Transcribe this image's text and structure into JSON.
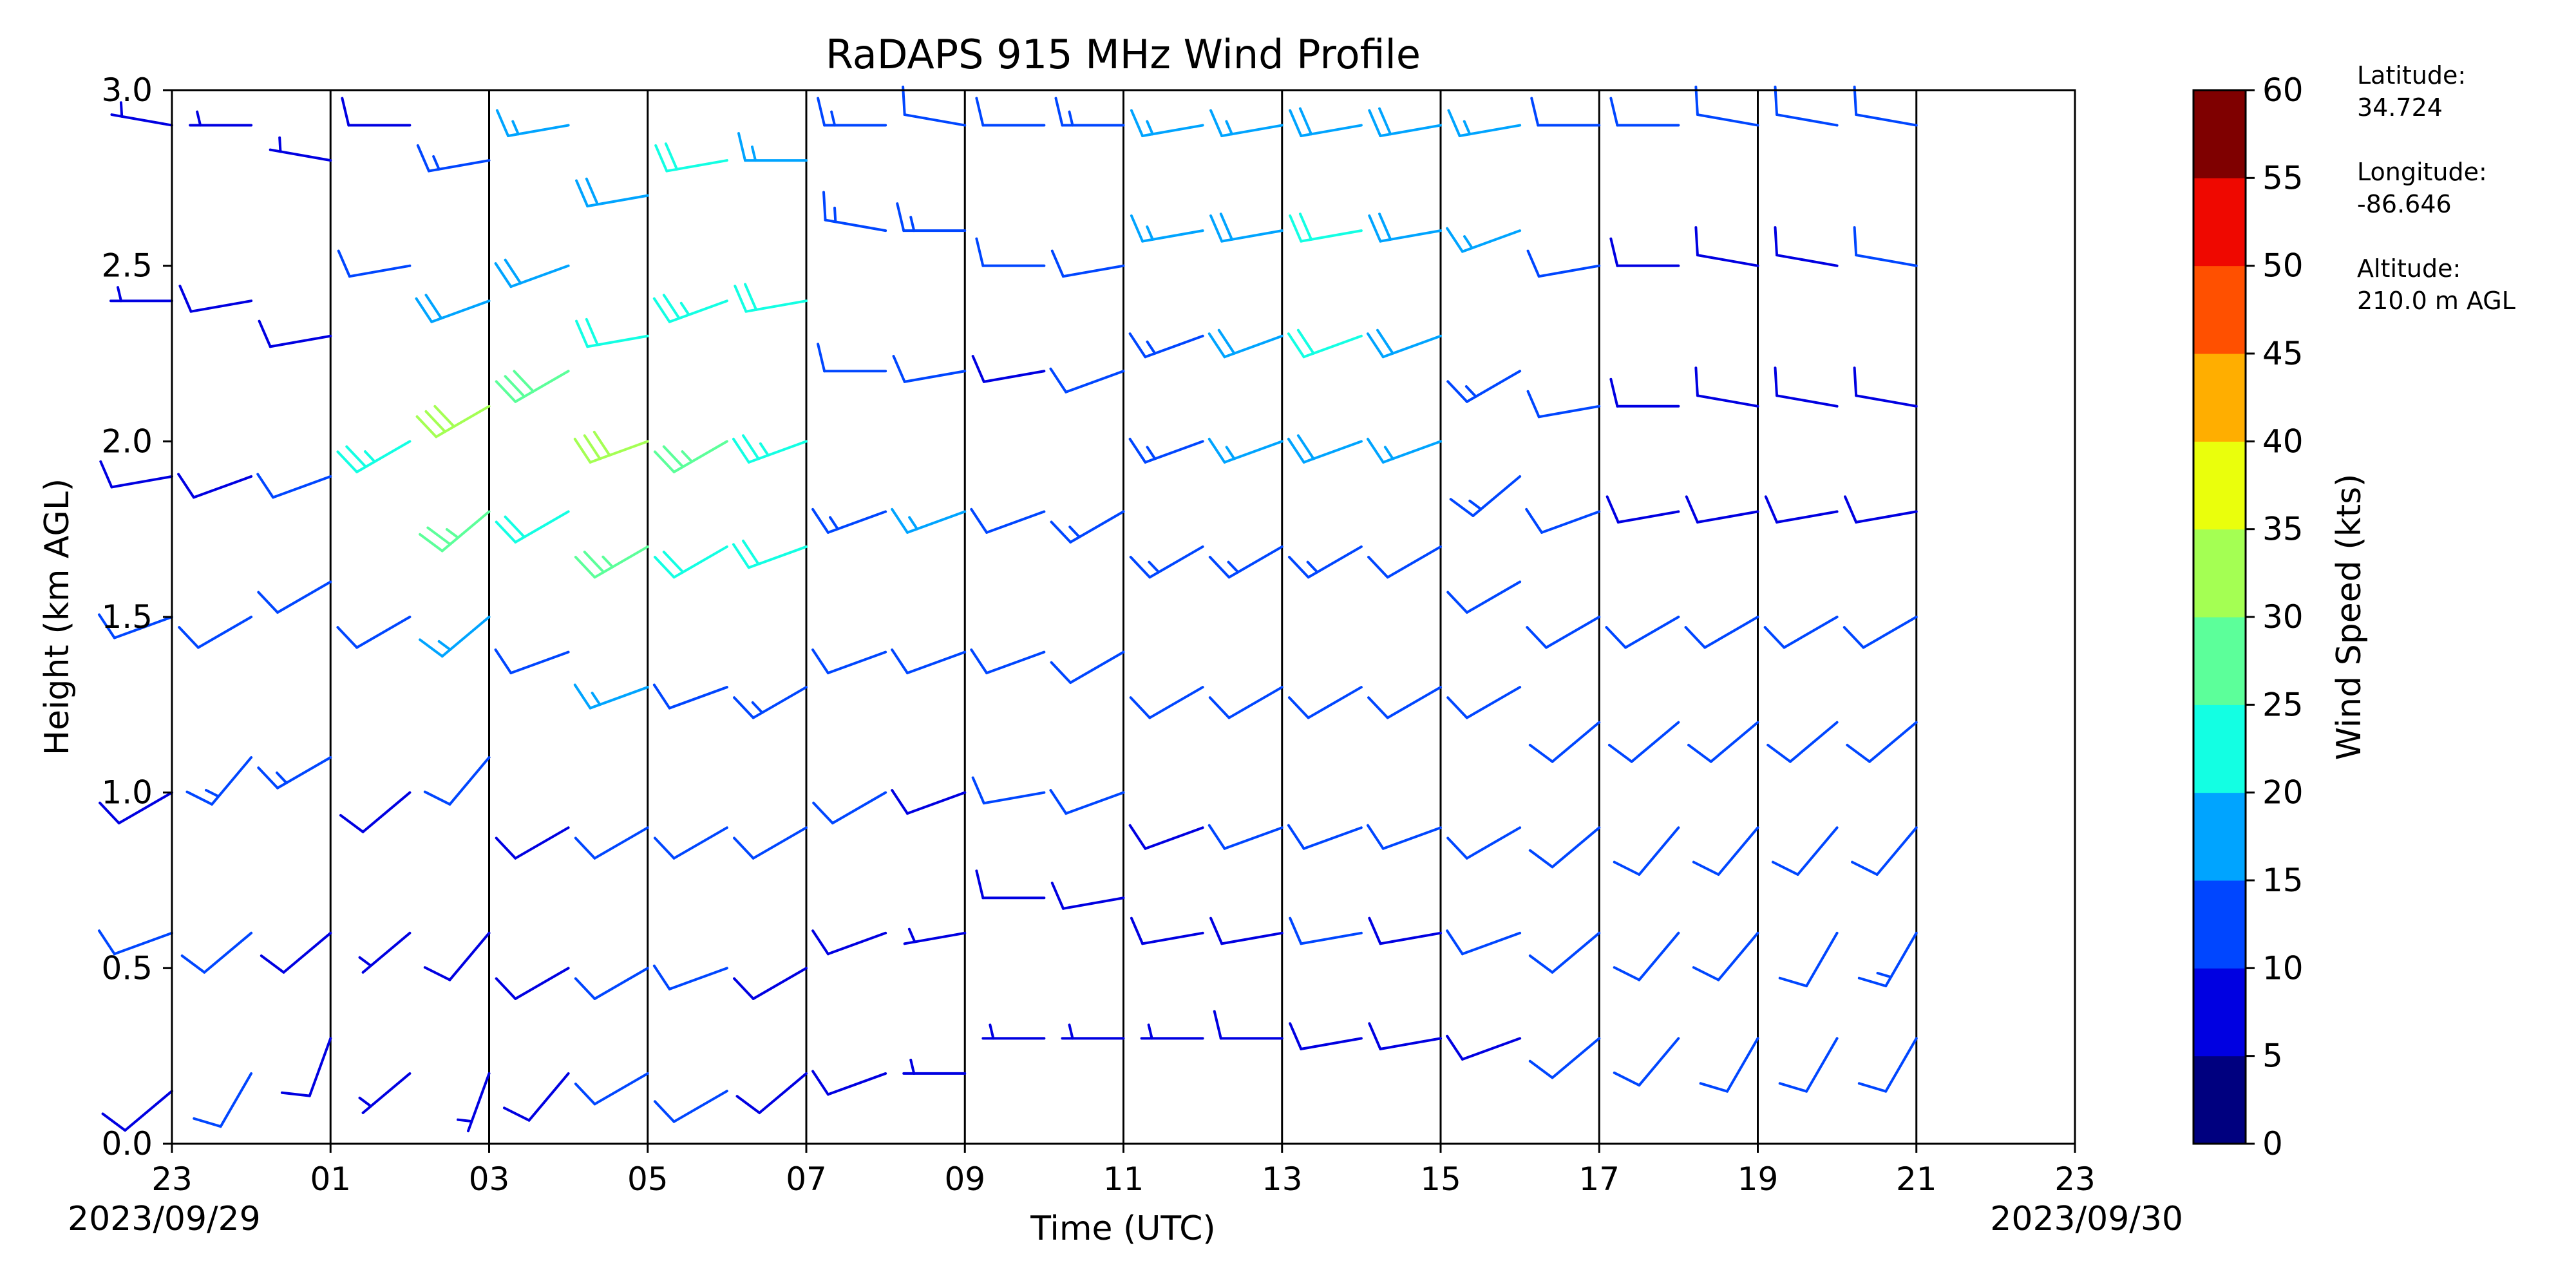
{
  "chart_data": {
    "type": "wind_barb_profile",
    "title": "RaDAPS 915 MHz Wind Profile",
    "xlabel": "Time (UTC)",
    "ylabel": "Height (km AGL)",
    "x_ticks": [
      "23",
      "01",
      "03",
      "05",
      "07",
      "09",
      "11",
      "13",
      "15",
      "17",
      "19",
      "21",
      "23"
    ],
    "x_range_hours": [
      0,
      24
    ],
    "start_date": "2023/09/29",
    "end_date": "2023/09/30",
    "y_ticks": [
      "0.0",
      "0.5",
      "1.0",
      "1.5",
      "2.0",
      "2.5",
      "3.0"
    ],
    "ylim": [
      0,
      3
    ],
    "colorbar": {
      "label": "Wind Speed (kts)",
      "ticks": [
        "0",
        "5",
        "10",
        "15",
        "20",
        "25",
        "30",
        "35",
        "40",
        "45",
        "50",
        "55",
        "60"
      ],
      "range": [
        0,
        60
      ],
      "colors": [
        "#00007f",
        "#0000e1",
        "#0046ff",
        "#00a4ff",
        "#13ffe3",
        "#5cff9a",
        "#a4ff53",
        "#eaff0c",
        "#ffae00",
        "#ff5000",
        "#ef0800",
        "#7f0000"
      ]
    },
    "station": {
      "latitude_label": "Latitude:",
      "latitude": "34.724",
      "longitude_label": "Longitude:",
      "longitude": "-86.646",
      "altitude_label": "Altitude:",
      "altitude": "210.0 m AGL"
    },
    "profiles": [
      {
        "time": 0.0,
        "heights": [
          0.15,
          0.6,
          1.0,
          1.5,
          1.9,
          2.4,
          2.9
        ],
        "speed": [
          8,
          10,
          9,
          10,
          8,
          7,
          6
        ],
        "dir": [
          230,
          250,
          240,
          250,
          260,
          270,
          280
        ]
      },
      {
        "time": 1.0,
        "heights": [
          0.2,
          0.6,
          1.1,
          1.5,
          1.9,
          2.4,
          2.9
        ],
        "speed": [
          10,
          12,
          14,
          12,
          9,
          8,
          6
        ],
        "dir": [
          210,
          230,
          220,
          240,
          250,
          260,
          270
        ]
      },
      {
        "time": 2.0,
        "heights": [
          0.3,
          0.6,
          1.1,
          1.6,
          1.9,
          2.3,
          2.8
        ],
        "speed": [
          8,
          9,
          14,
          12,
          10,
          9,
          6
        ],
        "dir": [
          200,
          230,
          240,
          240,
          250,
          260,
          280
        ]
      },
      {
        "time": 3.0,
        "heights": [
          0.2,
          0.6,
          1.0,
          1.5,
          2.0,
          2.5,
          2.9
        ],
        "speed": [
          5,
          7,
          8,
          10,
          24,
          12,
          8
        ],
        "dir": [
          230,
          230,
          230,
          240,
          240,
          260,
          270
        ]
      },
      {
        "time": 4.0,
        "heights": [
          0.2,
          0.6,
          1.1,
          1.5,
          1.8,
          2.1,
          2.4,
          2.8
        ],
        "speed": [
          6,
          8,
          10,
          17,
          26,
          30,
          18,
          14
        ],
        "dir": [
          200,
          220,
          220,
          230,
          230,
          240,
          250,
          260
        ]
      },
      {
        "time": 5.0,
        "heights": [
          0.2,
          0.5,
          0.9,
          1.4,
          1.8,
          2.2,
          2.5,
          2.9
        ],
        "speed": [
          9,
          9,
          9,
          12,
          22,
          28,
          18,
          16
        ],
        "dir": [
          220,
          240,
          240,
          250,
          240,
          240,
          250,
          260
        ]
      },
      {
        "time": 6.0,
        "heights": [
          0.2,
          0.5,
          0.9,
          1.3,
          1.7,
          2.0,
          2.3,
          2.7
        ],
        "speed": [
          12,
          11,
          10,
          16,
          26,
          30,
          22,
          19
        ],
        "dir": [
          240,
          240,
          240,
          250,
          240,
          250,
          260,
          260
        ]
      },
      {
        "time": 7.0,
        "heights": [
          0.15,
          0.5,
          0.9,
          1.3,
          1.7,
          2.0,
          2.4,
          2.8
        ],
        "speed": [
          10,
          11,
          10,
          12,
          22,
          27,
          24,
          20
        ],
        "dir": [
          240,
          250,
          240,
          250,
          240,
          240,
          250,
          260
        ]
      },
      {
        "time": 8.0,
        "heights": [
          0.2,
          0.5,
          0.9,
          1.3,
          1.7,
          2.0,
          2.4,
          2.8
        ],
        "speed": [
          9,
          9,
          10,
          14,
          20,
          24,
          20,
          15
        ],
        "dir": [
          230,
          240,
          240,
          240,
          250,
          250,
          260,
          270
        ]
      },
      {
        "time": 9.0,
        "heights": [
          0.2,
          0.6,
          1.0,
          1.4,
          1.8,
          2.2,
          2.6,
          2.9
        ],
        "speed": [
          8,
          9,
          10,
          12,
          14,
          10,
          13,
          14
        ],
        "dir": [
          250,
          250,
          240,
          250,
          250,
          270,
          280,
          270
        ]
      },
      {
        "time": 10.0,
        "heights": [
          0.2,
          0.6,
          1.0,
          1.4,
          1.8,
          2.2,
          2.6,
          2.9
        ],
        "speed": [
          7,
          7,
          9,
          12,
          16,
          12,
          14,
          12
        ],
        "dir": [
          270,
          260,
          250,
          250,
          250,
          260,
          270,
          280
        ]
      },
      {
        "time": 11.0,
        "heights": [
          0.3,
          0.7,
          1.0,
          1.4,
          1.8,
          2.2,
          2.5,
          2.9
        ],
        "speed": [
          6,
          9,
          11,
          12,
          10,
          9,
          12,
          12
        ],
        "dir": [
          270,
          270,
          260,
          250,
          250,
          260,
          270,
          270
        ]
      },
      {
        "time": 12.0,
        "heights": [
          0.3,
          0.7,
          1.0,
          1.4,
          1.8,
          2.2,
          2.5,
          2.9
        ],
        "speed": [
          7,
          9,
          10,
          12,
          13,
          10,
          12,
          14
        ],
        "dir": [
          270,
          260,
          250,
          240,
          240,
          250,
          260,
          270
        ]
      },
      {
        "time": 13.0,
        "heights": [
          0.3,
          0.6,
          0.9,
          1.3,
          1.7,
          2.0,
          2.3,
          2.6,
          2.9
        ],
        "speed": [
          6,
          8,
          9,
          11,
          13,
          14,
          14,
          15,
          15
        ],
        "dir": [
          270,
          260,
          250,
          240,
          240,
          250,
          250,
          260,
          260
        ]
      },
      {
        "time": 14.0,
        "heights": [
          0.3,
          0.6,
          0.9,
          1.3,
          1.7,
          2.0,
          2.3,
          2.6,
          2.9
        ],
        "speed": [
          8,
          9,
          10,
          12,
          14,
          16,
          18,
          18,
          16
        ],
        "dir": [
          270,
          260,
          250,
          240,
          240,
          250,
          250,
          260,
          260
        ]
      },
      {
        "time": 15.0,
        "heights": [
          0.3,
          0.6,
          0.9,
          1.3,
          1.7,
          2.0,
          2.3,
          2.6,
          2.9
        ],
        "speed": [
          9,
          10,
          11,
          12,
          14,
          18,
          20,
          20,
          18
        ],
        "dir": [
          260,
          260,
          250,
          240,
          240,
          250,
          250,
          260,
          260
        ]
      },
      {
        "time": 16.0,
        "heights": [
          0.3,
          0.6,
          0.9,
          1.3,
          1.7,
          2.0,
          2.3,
          2.6,
          2.9
        ],
        "speed": [
          8,
          9,
          10,
          11,
          12,
          15,
          18,
          19,
          18
        ],
        "dir": [
          260,
          260,
          250,
          240,
          240,
          250,
          250,
          260,
          260
        ]
      },
      {
        "time": 17.0,
        "heights": [
          0.3,
          0.6,
          0.9,
          1.3,
          1.6,
          1.9,
          2.2,
          2.6,
          2.9
        ],
        "speed": [
          9,
          10,
          11,
          12,
          12,
          13,
          14,
          15,
          16
        ],
        "dir": [
          250,
          250,
          240,
          240,
          240,
          230,
          240,
          250,
          260
        ]
      },
      {
        "time": 18.0,
        "heights": [
          0.3,
          0.6,
          0.9,
          1.2,
          1.5,
          1.8,
          2.1,
          2.5,
          2.9
        ],
        "speed": [
          10,
          11,
          12,
          12,
          11,
          10,
          10,
          10,
          10
        ],
        "dir": [
          230,
          230,
          230,
          230,
          240,
          250,
          260,
          260,
          270
        ]
      },
      {
        "time": 19.0,
        "heights": [
          0.3,
          0.6,
          0.9,
          1.2,
          1.5,
          1.8,
          2.1,
          2.5,
          2.9
        ],
        "speed": [
          10,
          11,
          12,
          12,
          10,
          9,
          8,
          9,
          10
        ],
        "dir": [
          220,
          220,
          220,
          230,
          240,
          260,
          270,
          270,
          270
        ]
      },
      {
        "time": 20.0,
        "heights": [
          0.3,
          0.6,
          0.9,
          1.2,
          1.5,
          1.8,
          2.1,
          2.5,
          2.9
        ],
        "speed": [
          11,
          12,
          12,
          12,
          10,
          9,
          8,
          9,
          10
        ],
        "dir": [
          210,
          220,
          220,
          230,
          240,
          260,
          280,
          280,
          280
        ]
      },
      {
        "time": 21.0,
        "heights": [
          0.3,
          0.6,
          0.9,
          1.2,
          1.5,
          1.8,
          2.1,
          2.5,
          2.9
        ],
        "speed": [
          12,
          12,
          12,
          11,
          10,
          9,
          8,
          9,
          10
        ],
        "dir": [
          210,
          210,
          220,
          230,
          240,
          260,
          280,
          280,
          280
        ]
      },
      {
        "time": 22.0,
        "heights": [
          0.3,
          0.6,
          0.9,
          1.2,
          1.5,
          1.8,
          2.1,
          2.5,
          2.9
        ],
        "speed": [
          12,
          13,
          12,
          11,
          10,
          9,
          9,
          10,
          11
        ],
        "dir": [
          210,
          210,
          220,
          230,
          240,
          260,
          280,
          280,
          280
        ]
      }
    ]
  }
}
